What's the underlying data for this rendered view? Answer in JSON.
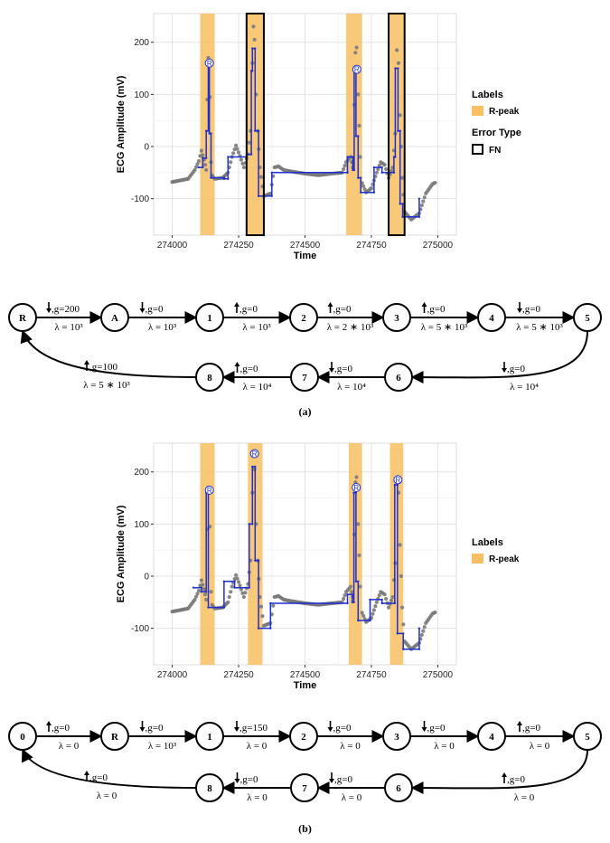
{
  "chart_data": [
    {
      "type": "line",
      "xlabel": "Time",
      "ylabel": "ECG Amplitude (mV)",
      "xlim": [
        273930,
        275070
      ],
      "ylim": [
        -170,
        255
      ],
      "xticks": [
        274000,
        274250,
        274500,
        274750,
        275000
      ],
      "yticks": [
        -100,
        0,
        100,
        200
      ],
      "grid": true,
      "legend": {
        "position": "right",
        "labels_title": "Labels",
        "labels_entry": "R-peak",
        "error_title": "Error Type",
        "error_entry": "FN"
      },
      "colors": {
        "band": "#f8bf63",
        "signal": "#7a7a7a",
        "fit": "#1f2fd0",
        "marker": "#ffffff"
      },
      "rpeak_bands": [
        [
          274105,
          274160
        ],
        [
          274280,
          274345
        ],
        [
          274655,
          274715
        ],
        [
          274815,
          274875
        ]
      ],
      "fn_boxes": [
        [
          274280,
          274345
        ],
        [
          274815,
          274875
        ]
      ],
      "r_markers": [
        {
          "x": 274140,
          "y": 160,
          "label": "R"
        },
        {
          "x": 274695,
          "y": 148,
          "label": "R"
        }
      ],
      "signal": [
        [
          274000,
          -68
        ],
        [
          274030,
          -65
        ],
        [
          274060,
          -62
        ],
        [
          274085,
          -45
        ],
        [
          274100,
          -28
        ],
        [
          274110,
          -8
        ],
        [
          274120,
          -25
        ],
        [
          274128,
          -45
        ],
        [
          274132,
          90
        ],
        [
          274136,
          170
        ],
        [
          274142,
          95
        ],
        [
          274146,
          -30
        ],
        [
          274150,
          -55
        ],
        [
          274160,
          -62
        ],
        [
          274190,
          -60
        ],
        [
          274210,
          -50
        ],
        [
          274225,
          -20
        ],
        [
          274240,
          2
        ],
        [
          274255,
          -18
        ],
        [
          274270,
          -40
        ],
        [
          274285,
          -15
        ],
        [
          274295,
          30
        ],
        [
          274302,
          160
        ],
        [
          274306,
          230
        ],
        [
          274310,
          205
        ],
        [
          274316,
          100
        ],
        [
          274322,
          30
        ],
        [
          274330,
          -40
        ],
        [
          274345,
          -95
        ],
        [
          274370,
          -90
        ],
        [
          274385,
          -40
        ],
        [
          274400,
          -38
        ],
        [
          274420,
          -45
        ],
        [
          274450,
          -48
        ],
        [
          274500,
          -52
        ],
        [
          274550,
          -55
        ],
        [
          274600,
          -52
        ],
        [
          274640,
          -50
        ],
        [
          274655,
          -30
        ],
        [
          274672,
          -20
        ],
        [
          274680,
          -40
        ],
        [
          274686,
          80
        ],
        [
          274690,
          180
        ],
        [
          274694,
          190
        ],
        [
          274700,
          100
        ],
        [
          274708,
          -20
        ],
        [
          274715,
          -70
        ],
        [
          274730,
          -88
        ],
        [
          274750,
          -80
        ],
        [
          274770,
          -50
        ],
        [
          274785,
          -30
        ],
        [
          274800,
          -35
        ],
        [
          274815,
          -60
        ],
        [
          274830,
          -40
        ],
        [
          274840,
          25
        ],
        [
          274846,
          185
        ],
        [
          274852,
          160
        ],
        [
          274858,
          60
        ],
        [
          274866,
          -60
        ],
        [
          274875,
          -125
        ],
        [
          274900,
          -140
        ],
        [
          274930,
          -128
        ],
        [
          274955,
          -90
        ],
        [
          274980,
          -72
        ],
        [
          274995,
          -68
        ]
      ],
      "fit": [
        [
          274100,
          -40
        ],
        [
          274115,
          -40
        ],
        [
          274115,
          -22
        ],
        [
          274128,
          -22
        ],
        [
          274128,
          30
        ],
        [
          274136,
          30
        ],
        [
          274136,
          158
        ],
        [
          274140,
          158
        ],
        [
          274140,
          25
        ],
        [
          274146,
          25
        ],
        [
          274146,
          -60
        ],
        [
          274195,
          -60
        ],
        [
          274195,
          -62
        ],
        [
          274210,
          -62
        ],
        [
          274210,
          -20
        ],
        [
          274280,
          -20
        ],
        [
          274280,
          -15
        ],
        [
          274298,
          -15
        ],
        [
          274298,
          145
        ],
        [
          274302,
          145
        ],
        [
          274302,
          188
        ],
        [
          274312,
          188
        ],
        [
          274312,
          30
        ],
        [
          274325,
          30
        ],
        [
          274325,
          -95
        ],
        [
          274375,
          -95
        ],
        [
          274375,
          -50
        ],
        [
          274660,
          -50
        ],
        [
          274660,
          -20
        ],
        [
          274680,
          -20
        ],
        [
          274680,
          -45
        ],
        [
          274685,
          -45
        ],
        [
          274685,
          145
        ],
        [
          274692,
          145
        ],
        [
          274692,
          20
        ],
        [
          274700,
          20
        ],
        [
          274700,
          -60
        ],
        [
          274710,
          -60
        ],
        [
          274710,
          -88
        ],
        [
          274760,
          -88
        ],
        [
          274760,
          -40
        ],
        [
          274790,
          -40
        ],
        [
          274790,
          -50
        ],
        [
          274835,
          -50
        ],
        [
          274835,
          -20
        ],
        [
          274840,
          -20
        ],
        [
          274840,
          150
        ],
        [
          274850,
          150
        ],
        [
          274850,
          30
        ],
        [
          274858,
          30
        ],
        [
          274858,
          -110
        ],
        [
          274868,
          -110
        ],
        [
          274868,
          -135
        ],
        [
          274930,
          -135
        ],
        [
          274930,
          -100
        ]
      ]
    },
    {
      "type": "line",
      "xlabel": "Time",
      "ylabel": "ECG Amplitude (mV)",
      "xlim": [
        273930,
        275070
      ],
      "ylim": [
        -170,
        255
      ],
      "xticks": [
        274000,
        274250,
        274500,
        274750,
        275000
      ],
      "yticks": [
        -100,
        0,
        100,
        200
      ],
      "grid": true,
      "legend": {
        "position": "right",
        "labels_title": "Labels",
        "labels_entry": "R-peak"
      },
      "colors": {
        "band": "#f8bf63",
        "signal": "#7a7a7a",
        "fit": "#1f2fd0",
        "marker": "#ffffff"
      },
      "rpeak_bands": [
        [
          274105,
          274160
        ],
        [
          274285,
          274340
        ],
        [
          274665,
          274715
        ],
        [
          274820,
          274870
        ]
      ],
      "r_markers": [
        {
          "x": 274140,
          "y": 165,
          "label": "R"
        },
        {
          "x": 274310,
          "y": 235,
          "label": "R"
        },
        {
          "x": 274693,
          "y": 170,
          "label": "R"
        },
        {
          "x": 274850,
          "y": 185,
          "label": "R"
        }
      ],
      "signal": [
        [
          274000,
          -68
        ],
        [
          274030,
          -65
        ],
        [
          274060,
          -62
        ],
        [
          274085,
          -45
        ],
        [
          274100,
          -28
        ],
        [
          274110,
          -8
        ],
        [
          274120,
          -25
        ],
        [
          274128,
          -45
        ],
        [
          274132,
          90
        ],
        [
          274136,
          170
        ],
        [
          274142,
          95
        ],
        [
          274146,
          -30
        ],
        [
          274150,
          -55
        ],
        [
          274160,
          -62
        ],
        [
          274190,
          -60
        ],
        [
          274210,
          -50
        ],
        [
          274225,
          -20
        ],
        [
          274240,
          2
        ],
        [
          274255,
          -18
        ],
        [
          274270,
          -40
        ],
        [
          274285,
          -15
        ],
        [
          274295,
          30
        ],
        [
          274302,
          160
        ],
        [
          274306,
          230
        ],
        [
          274310,
          205
        ],
        [
          274316,
          100
        ],
        [
          274322,
          30
        ],
        [
          274330,
          -40
        ],
        [
          274345,
          -95
        ],
        [
          274370,
          -90
        ],
        [
          274385,
          -40
        ],
        [
          274400,
          -38
        ],
        [
          274420,
          -45
        ],
        [
          274450,
          -48
        ],
        [
          274500,
          -52
        ],
        [
          274550,
          -55
        ],
        [
          274600,
          -52
        ],
        [
          274640,
          -50
        ],
        [
          274655,
          -30
        ],
        [
          274672,
          -20
        ],
        [
          274680,
          -40
        ],
        [
          274686,
          80
        ],
        [
          274690,
          180
        ],
        [
          274694,
          190
        ],
        [
          274700,
          100
        ],
        [
          274708,
          -20
        ],
        [
          274715,
          -70
        ],
        [
          274730,
          -88
        ],
        [
          274750,
          -80
        ],
        [
          274770,
          -50
        ],
        [
          274785,
          -30
        ],
        [
          274800,
          -35
        ],
        [
          274815,
          -60
        ],
        [
          274830,
          -40
        ],
        [
          274840,
          25
        ],
        [
          274846,
          185
        ],
        [
          274852,
          160
        ],
        [
          274858,
          60
        ],
        [
          274866,
          -60
        ],
        [
          274875,
          -125
        ],
        [
          274900,
          -140
        ],
        [
          274930,
          -128
        ],
        [
          274955,
          -90
        ],
        [
          274980,
          -72
        ],
        [
          274995,
          -68
        ]
      ],
      "fit": [
        [
          274080,
          -22
        ],
        [
          274110,
          -22
        ],
        [
          274110,
          -30
        ],
        [
          274128,
          -30
        ],
        [
          274128,
          160
        ],
        [
          274136,
          160
        ],
        [
          274136,
          -60
        ],
        [
          274195,
          -60
        ],
        [
          274195,
          -10
        ],
        [
          274235,
          -10
        ],
        [
          274235,
          -22
        ],
        [
          274290,
          -22
        ],
        [
          274290,
          100
        ],
        [
          274302,
          100
        ],
        [
          274302,
          210
        ],
        [
          274312,
          210
        ],
        [
          274312,
          30
        ],
        [
          274325,
          30
        ],
        [
          274325,
          -100
        ],
        [
          274370,
          -100
        ],
        [
          274370,
          -52
        ],
        [
          274660,
          -52
        ],
        [
          274660,
          -35
        ],
        [
          274678,
          -35
        ],
        [
          274678,
          -50
        ],
        [
          274684,
          -50
        ],
        [
          274684,
          160
        ],
        [
          274692,
          160
        ],
        [
          274692,
          -10
        ],
        [
          274700,
          -10
        ],
        [
          274700,
          -85
        ],
        [
          274745,
          -85
        ],
        [
          274745,
          -45
        ],
        [
          274790,
          -45
        ],
        [
          274790,
          -52
        ],
        [
          274838,
          -52
        ],
        [
          274838,
          175
        ],
        [
          274848,
          175
        ],
        [
          274848,
          -110
        ],
        [
          274870,
          -110
        ],
        [
          274870,
          -140
        ],
        [
          274930,
          -140
        ],
        [
          274930,
          -100
        ]
      ]
    }
  ],
  "diagrams": [
    {
      "nodes": [
        {
          "label": "R"
        },
        {
          "label": "A"
        },
        {
          "label": "1"
        },
        {
          "label": "2"
        },
        {
          "label": "3"
        },
        {
          "label": "4"
        },
        {
          "label": "5"
        },
        {
          "label": "8"
        },
        {
          "label": "7"
        },
        {
          "label": "6"
        }
      ],
      "edges": [
        {
          "dir": "down",
          "g": ",g=200",
          "lambda": "λ = 10³"
        },
        {
          "dir": "down",
          "g": ",g=0",
          "lambda": "λ = 10³"
        },
        {
          "dir": "up",
          "g": ",g=0",
          "lambda": "λ = 10³"
        },
        {
          "dir": "up",
          "g": ",g=0",
          "lambda": "λ = 2 ∗ 10³"
        },
        {
          "dir": "up",
          "g": ",g=0",
          "lambda": "λ = 5 ∗ 10³"
        },
        {
          "dir": "down",
          "g": ",g=0",
          "lambda": "λ = 5 ∗ 10³"
        },
        {
          "dir": "down",
          "g": ",g=0",
          "lambda": "λ = 10⁴"
        },
        {
          "dir": "down",
          "g": ",g=0",
          "lambda": "λ = 10⁴"
        },
        {
          "dir": "up",
          "g": ",g=0",
          "lambda": "λ = 10⁴"
        },
        {
          "dir": "up",
          "g": ",g=100",
          "lambda": "λ = 5 ∗ 10³"
        }
      ]
    },
    {
      "nodes": [
        {
          "label": "0"
        },
        {
          "label": "R"
        },
        {
          "label": "1"
        },
        {
          "label": "2"
        },
        {
          "label": "3"
        },
        {
          "label": "4"
        },
        {
          "label": "5"
        },
        {
          "label": "8"
        },
        {
          "label": "7"
        },
        {
          "label": "6"
        }
      ],
      "edges": [
        {
          "dir": "up",
          "g": ",g=0",
          "lambda": "λ = 0"
        },
        {
          "dir": "down",
          "g": ",g=0",
          "lambda": "λ = 10³"
        },
        {
          "dir": "down",
          "g": ",g=150",
          "lambda": "λ = 0"
        },
        {
          "dir": "down",
          "g": ",g=0",
          "lambda": "λ = 0"
        },
        {
          "dir": "down",
          "g": ",g=0",
          "lambda": "λ = 0"
        },
        {
          "dir": "up",
          "g": ",g=0",
          "lambda": "λ = 0"
        },
        {
          "dir": "up",
          "g": ",g=0",
          "lambda": "λ = 0"
        },
        {
          "dir": "down",
          "g": ",g=0",
          "lambda": "λ = 0"
        },
        {
          "dir": "down",
          "g": ",g=0",
          "lambda": "λ = 0"
        },
        {
          "dir": "up",
          "g": ",g=0",
          "lambda": "λ = 0"
        }
      ]
    }
  ],
  "captions": {
    "a": "(a)",
    "b": "(b)"
  }
}
